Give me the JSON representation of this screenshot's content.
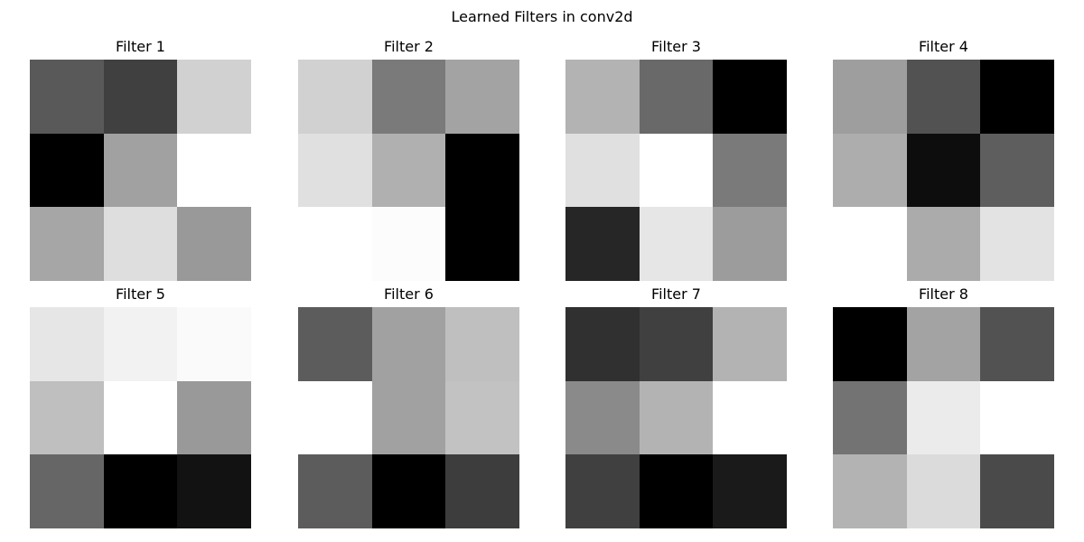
{
  "chart_data": {
    "type": "heatmap",
    "title": "Learned Filters in conv2d",
    "colormap": "gray",
    "colormap_endpoints": {
      "low": "#000000",
      "high": "#ffffff"
    },
    "axes_visible": false,
    "layout": {
      "rows": 2,
      "cols": 4
    },
    "panels": [
      {
        "title": "Filter 1",
        "values": [
          [
            0.35,
            0.25,
            0.82
          ],
          [
            0.0,
            0.63,
            1.0
          ],
          [
            0.65,
            0.87,
            0.6
          ]
        ]
      },
      {
        "title": "Filter 2",
        "values": [
          [
            0.82,
            0.48,
            0.64
          ],
          [
            0.88,
            0.69,
            0.0
          ],
          [
            1.0,
            0.99,
            0.0
          ]
        ]
      },
      {
        "title": "Filter 3",
        "values": [
          [
            0.7,
            0.41,
            0.0
          ],
          [
            0.88,
            1.0,
            0.48
          ],
          [
            0.15,
            0.9,
            0.61
          ]
        ]
      },
      {
        "title": "Filter 4",
        "values": [
          [
            0.62,
            0.32,
            0.0
          ],
          [
            0.68,
            0.05,
            0.37
          ],
          [
            1.0,
            0.67,
            0.89
          ]
        ]
      },
      {
        "title": "Filter 5",
        "values": [
          [
            0.9,
            0.95,
            0.98
          ],
          [
            0.75,
            1.0,
            0.6
          ],
          [
            0.4,
            0.0,
            0.07
          ]
        ]
      },
      {
        "title": "Filter 6",
        "values": [
          [
            0.36,
            0.63,
            0.75
          ],
          [
            1.0,
            0.63,
            0.76
          ],
          [
            0.36,
            0.0,
            0.24
          ]
        ]
      },
      {
        "title": "Filter 7",
        "values": [
          [
            0.19,
            0.25,
            0.7
          ],
          [
            0.54,
            0.7,
            1.0
          ],
          [
            0.25,
            0.0,
            0.1
          ]
        ]
      },
      {
        "title": "Filter 8",
        "values": [
          [
            0.0,
            0.64,
            0.32
          ],
          [
            0.45,
            0.92,
            1.0
          ],
          [
            0.7,
            0.86,
            0.29
          ]
        ]
      }
    ]
  }
}
